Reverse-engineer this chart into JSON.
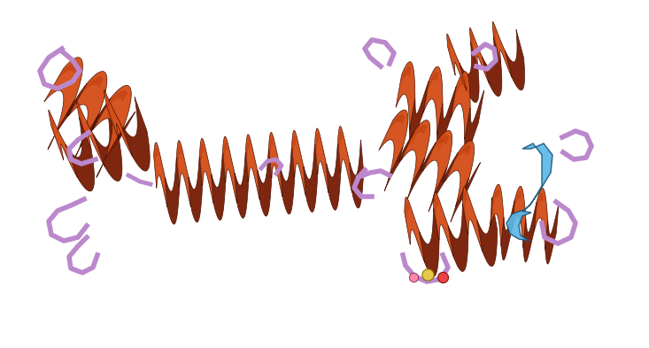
{
  "background_color": "#ffffff",
  "helix_color": "#bf3a0c",
  "helix_dark": "#7a2008",
  "helix_light": "#d4501a",
  "loop_color": "#bb88cc",
  "sheet_color": "#5bb8e8",
  "sheet_dark": "#2288bb",
  "atom_yellow": "#e8c84a",
  "atom_red": "#e84444",
  "figsize": [
    7.33,
    3.93
  ],
  "dpi": 100
}
